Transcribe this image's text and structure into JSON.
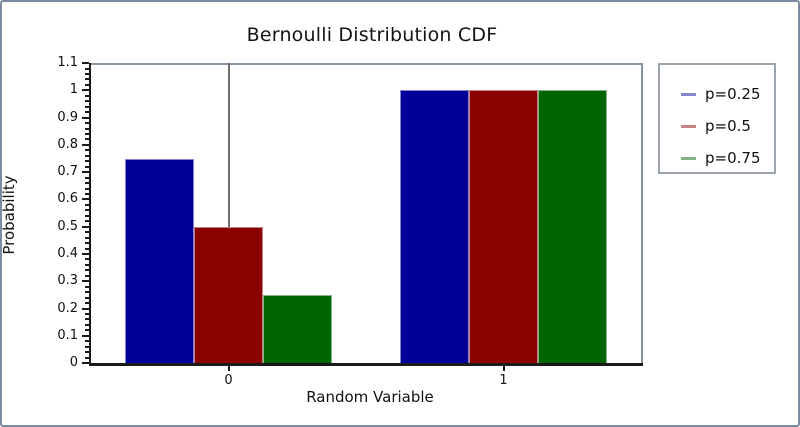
{
  "chart_data": {
    "type": "bar",
    "title": "Bernoulli Distribution CDF",
    "xlabel": "Random Variable",
    "ylabel": "Probability",
    "categories": [
      "0",
      "1"
    ],
    "series": [
      {
        "name": "p=0.25",
        "fill_color": "#000099",
        "legend_color": "#8585cc",
        "values": [
          0.75,
          1.0
        ]
      },
      {
        "name": "p=0.5",
        "fill_color": "#8b0000",
        "legend_color": "#c58585",
        "values": [
          0.5,
          1.0
        ]
      },
      {
        "name": "p=0.75",
        "fill_color": "#006600",
        "legend_color": "#85b285",
        "values": [
          0.25,
          1.0
        ]
      }
    ],
    "ylim": [
      0,
      1.1
    ],
    "xlim": [
      -0.5,
      1.5
    ],
    "y_major_step": 0.1,
    "y_minor_step": 0.02,
    "y_tick_labels": [
      "0",
      "0.1",
      "0.2",
      "0.3",
      "0.4",
      "0.5",
      "0.6",
      "0.7",
      "0.8",
      "0.9",
      "1",
      "1.1"
    ],
    "bar_width": 0.25,
    "gridline_x": 0,
    "grid_color": "#6f6f6f",
    "legend_position": "right",
    "legend_border_color": "#9aa3ae",
    "frame_border_color": "#7d8ba3"
  }
}
